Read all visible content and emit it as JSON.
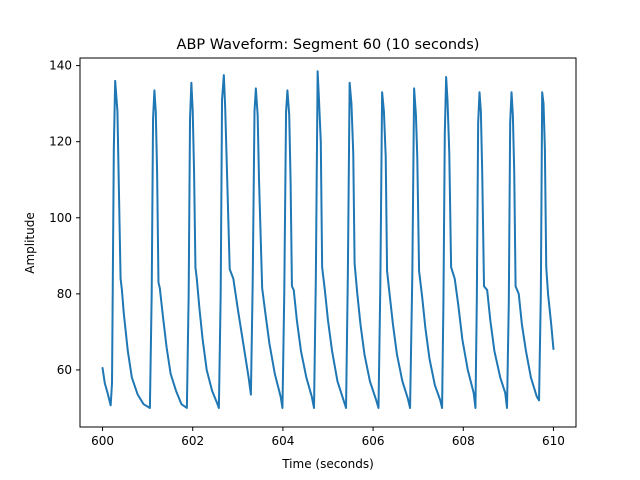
{
  "chart_data": {
    "type": "line",
    "title": "ABP Waveform: Segment 60 (10 seconds)",
    "xlabel": "Time (seconds)",
    "ylabel": "Amplitude",
    "xlim": [
      599.5,
      610.5
    ],
    "ylim": [
      45,
      142
    ],
    "xticks": [
      600,
      602,
      604,
      606,
      608,
      610
    ],
    "yticks": [
      60,
      80,
      100,
      120,
      140
    ],
    "xtick_labels": [
      "600",
      "602",
      "604",
      "606",
      "608",
      "610"
    ],
    "ytick_labels": [
      "60",
      "80",
      "100",
      "120",
      "140"
    ],
    "grid": false,
    "legend": "none",
    "line_color": "#1f77b4",
    "series": [
      {
        "x": [
          600.0,
          600.05,
          600.11,
          600.18,
          600.21,
          600.25,
          600.28,
          600.33,
          600.4,
          600.43,
          600.47,
          600.56,
          600.65,
          600.78,
          600.91,
          601.05,
          601.09,
          601.12,
          601.15,
          601.18,
          601.21,
          601.24,
          601.27,
          601.34,
          601.42,
          601.51,
          601.63,
          601.75,
          601.87,
          601.91,
          601.94,
          601.97,
          602.0,
          602.03,
          602.06,
          602.09,
          602.15,
          602.22,
          602.31,
          602.43,
          602.55,
          602.58,
          602.62,
          602.65,
          602.69,
          602.72,
          602.76,
          602.82,
          602.9,
          603.0,
          603.12,
          603.24,
          603.29,
          603.33,
          603.37,
          603.4,
          603.44,
          603.47,
          603.54,
          603.61,
          603.7,
          603.82,
          603.95,
          603.99,
          604.03,
          604.07,
          604.1,
          604.14,
          604.17,
          604.2,
          604.24,
          604.31,
          604.4,
          604.52,
          604.64,
          604.69,
          604.73,
          604.77,
          604.8,
          604.84,
          604.87,
          604.93,
          605.0,
          605.09,
          605.21,
          605.36,
          605.4,
          605.44,
          605.48,
          605.52,
          605.56,
          605.59,
          605.65,
          605.72,
          605.81,
          605.93,
          606.07,
          606.12,
          606.16,
          606.2,
          606.24,
          606.28,
          606.31,
          606.37,
          606.44,
          606.53,
          606.65,
          606.77,
          606.82,
          606.87,
          606.91,
          606.95,
          606.98,
          607.02,
          607.09,
          607.16,
          607.25,
          607.37,
          607.49,
          607.53,
          607.56,
          607.59,
          607.62,
          607.65,
          607.69,
          607.73,
          607.81,
          607.89,
          607.98,
          608.1,
          608.23,
          608.27,
          608.3,
          608.33,
          608.36,
          608.39,
          608.42,
          608.46,
          608.53,
          608.6,
          608.69,
          608.82,
          608.93,
          608.97,
          609.01,
          609.04,
          609.07,
          609.1,
          609.13,
          609.16,
          609.23,
          609.3,
          609.39,
          609.5,
          609.63,
          609.68,
          609.72,
          609.75,
          609.78,
          609.81,
          609.84,
          609.88,
          609.95,
          610.0
        ],
        "y": [
          60.5,
          56.5,
          54.0,
          50.7,
          56.5,
          118.0,
          136.0,
          128.0,
          84.0,
          81.0,
          75.0,
          65.0,
          58.0,
          53.5,
          51.0,
          50.0,
          80.0,
          126.0,
          133.5,
          128.0,
          112.0,
          83.0,
          81.5,
          74.0,
          66.0,
          59.0,
          54.5,
          51.0,
          50.0,
          80.0,
          126.0,
          135.5,
          128.0,
          112.0,
          87.0,
          84.0,
          76.0,
          68.0,
          60.0,
          54.5,
          51.0,
          50.0,
          80.0,
          131.0,
          137.5,
          129.0,
          112.0,
          86.5,
          84.0,
          76.0,
          67.0,
          58.0,
          53.5,
          83.0,
          128.0,
          134.0,
          127.0,
          110.0,
          81.5,
          75.0,
          67.0,
          59.0,
          53.0,
          50.0,
          80.0,
          128.0,
          133.5,
          127.0,
          110.0,
          82.0,
          81.0,
          73.0,
          65.0,
          58.0,
          53.0,
          50.0,
          84.0,
          138.5,
          131.0,
          120.0,
          87.0,
          81.0,
          73.0,
          65.0,
          57.0,
          51.5,
          50.0,
          85.0,
          135.5,
          130.0,
          117.0,
          88.0,
          80.0,
          72.0,
          64.0,
          57.0,
          52.0,
          50.0,
          82.0,
          133.0,
          128.0,
          116.0,
          86.0,
          79.5,
          72.0,
          64.0,
          57.0,
          52.5,
          50.0,
          85.0,
          134.0,
          127.0,
          116.0,
          86.0,
          79.0,
          71.0,
          63.0,
          56.0,
          52.0,
          50.0,
          78.0,
          122.0,
          137.0,
          131.0,
          117.0,
          87.0,
          84.0,
          77.0,
          68.0,
          60.0,
          54.0,
          50.0,
          78.0,
          125.0,
          133.0,
          128.0,
          112.0,
          82.0,
          81.0,
          73.0,
          65.0,
          58.0,
          54.0,
          50.0,
          78.0,
          125.0,
          133.0,
          127.0,
          112.0,
          82.0,
          80.0,
          72.0,
          65.0,
          58.0,
          53.0,
          52.0,
          80.0,
          133.0,
          130.0,
          118.0,
          87.0,
          80.0,
          72.0,
          65.5
        ]
      }
    ]
  }
}
